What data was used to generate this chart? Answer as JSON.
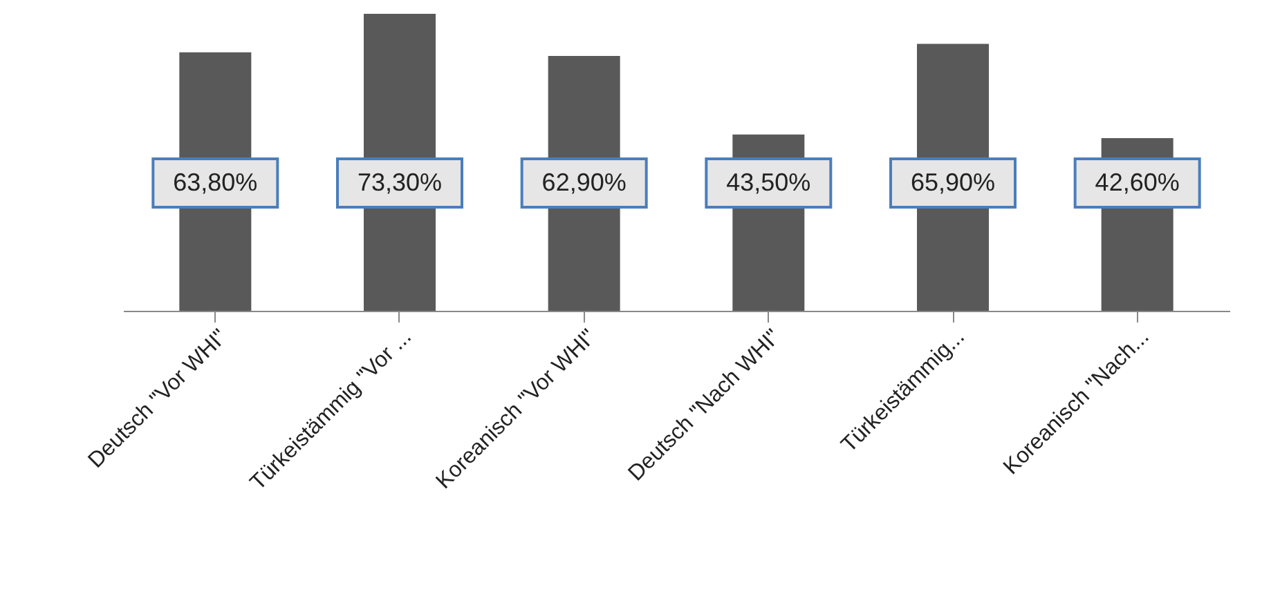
{
  "chart_data": {
    "type": "bar",
    "categories": [
      "Deutsch \"Vor WHI\"",
      "Türkeistämmig \"Vor ...",
      "Koreanisch \"Vor WHI\"",
      "Deutsch \"Nach WHI\"",
      "Türkeistämmig...",
      "Koreanisch \"Nach..."
    ],
    "values": [
      63.8,
      73.3,
      62.9,
      43.5,
      65.9,
      42.6
    ],
    "value_labels": [
      "63,80%",
      "73,30%",
      "62,90%",
      "43,50%",
      "65,90%",
      "42,60%"
    ],
    "color": "#595959",
    "grid": false,
    "tick_labels": "x"
  }
}
